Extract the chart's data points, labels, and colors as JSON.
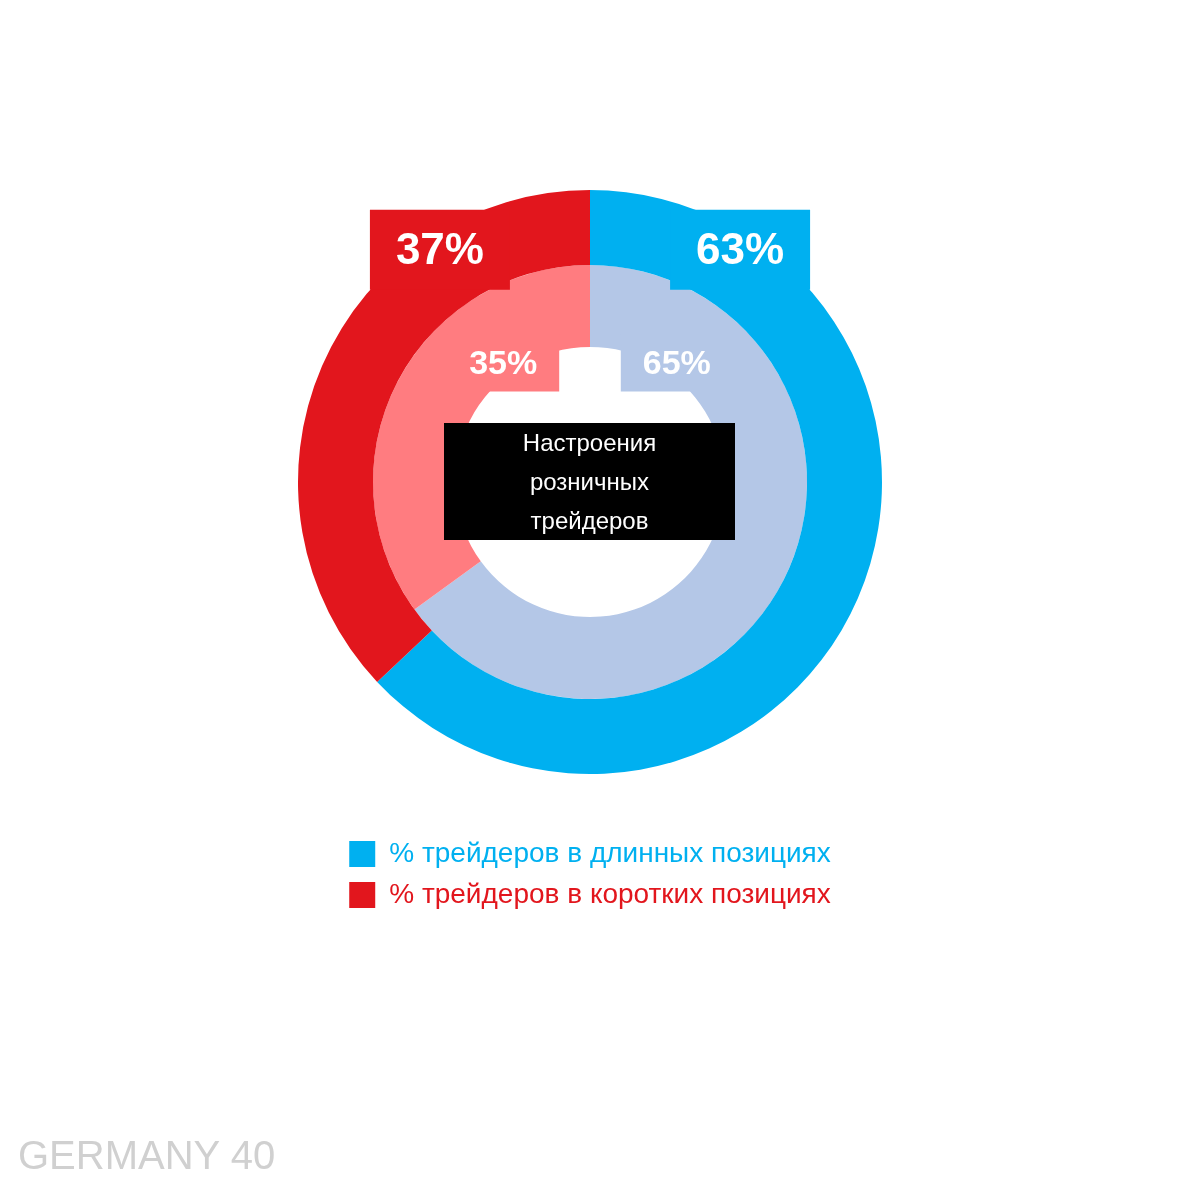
{
  "chart_data": {
    "type": "donut",
    "categories": [
      "% трейдеров в длинных позициях",
      "% трейдеров в коротких позициях"
    ],
    "series": [
      {
        "values": [
          63,
          37
        ],
        "colors": [
          "#00b0f0",
          "#e2161d"
        ],
        "value_labels": [
          "63%",
          "37%"
        ]
      },
      {
        "values": [
          65,
          35
        ],
        "colors": [
          "#b4c7e7",
          "#ff7c80"
        ],
        "value_labels": [
          "65%",
          "35%"
        ]
      }
    ],
    "legend": "bottom",
    "annotations": [
      "Настроения розничных трейдеров",
      "GERMANY 40"
    ]
  }
}
